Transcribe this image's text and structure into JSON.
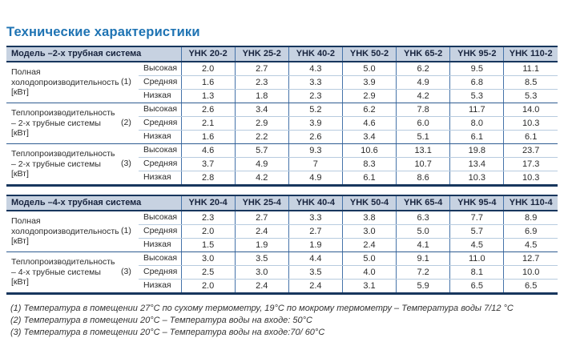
{
  "page": {
    "title": "Технические характеристики"
  },
  "colors": {
    "title_blue": "#1e73b3",
    "header_background": "#c7d2e1",
    "header_text": "#17233d",
    "heavy_border": "#17365d",
    "column_border": "#4573a9",
    "light_row_border": "#b7cbdf",
    "group_border": "#2f5c91"
  },
  "tables": [
    {
      "id": "two-pipe",
      "header_label": "Модель –2-х трубная система",
      "columns": [
        "YHK 20-2",
        "YHK 25-2",
        "YHK 40-2",
        "YHK 50-2",
        "YHK 65-2",
        "YHK 95-2",
        "YHK 110-2"
      ],
      "groups": [
        {
          "label": "Полная холодопроизводительность [кВт]",
          "note_ref": "(1)",
          "rows": [
            {
              "level": "Высокая",
              "values": [
                "2.0",
                "2.7",
                "4.3",
                "5.0",
                "6.2",
                "9.5",
                "11.1"
              ]
            },
            {
              "level": "Средняя",
              "values": [
                "1.6",
                "2.3",
                "3.3",
                "3.9",
                "4.9",
                "6.8",
                "8.5"
              ]
            },
            {
              "level": "Низкая",
              "values": [
                "1.3",
                "1.8",
                "2.3",
                "2.9",
                "4.2",
                "5.3",
                "5.3"
              ]
            }
          ]
        },
        {
          "label": "Теплопроизводительность – 2-х трубные системы [кВт]",
          "note_ref": "(2)",
          "rows": [
            {
              "level": "Высокая",
              "values": [
                "2.6",
                "3.4",
                "5.2",
                "6.2",
                "7.8",
                "11.7",
                "14.0"
              ]
            },
            {
              "level": "Средняя",
              "values": [
                "2.1",
                "2.9",
                "3.9",
                "4.6",
                "6.0",
                "8.0",
                "10.3"
              ]
            },
            {
              "level": "Низкая",
              "values": [
                "1.6",
                "2.2",
                "2.6",
                "3.4",
                "5.1",
                "6.1",
                "6.1"
              ]
            }
          ]
        },
        {
          "label": "Теплопроизводительность – 2-х трубные системы [кВт]",
          "note_ref": "(3)",
          "rows": [
            {
              "level": "Высокая",
              "values": [
                "4.6",
                "5.7",
                "9.3",
                "10.6",
                "13.1",
                "19.8",
                "23.7"
              ]
            },
            {
              "level": "Средняя",
              "values": [
                "3.7",
                "4.9",
                "7",
                "8.3",
                "10.7",
                "13.4",
                "17.3"
              ]
            },
            {
              "level": "Низкая",
              "values": [
                "2.8",
                "4.2",
                "4.9",
                "6.1",
                "8.6",
                "10.3",
                "10.3"
              ]
            }
          ]
        }
      ]
    },
    {
      "id": "four-pipe",
      "header_label": "Модель –4-х трубная система",
      "columns": [
        "YHK 20-4",
        "YHK 25-4",
        "YHK 40-4",
        "YHK 50-4",
        "YHK 65-4",
        "YHK 95-4",
        "YHK 110-4"
      ],
      "groups": [
        {
          "label": "Полная холодопроизводительность [кВт]",
          "note_ref": "(1)",
          "rows": [
            {
              "level": "Высокая",
              "values": [
                "2.3",
                "2.7",
                "3.3",
                "3.8",
                "6.3",
                "7.7",
                "8.9"
              ]
            },
            {
              "level": "Средняя",
              "values": [
                "2.0",
                "2.4",
                "2.7",
                "3.0",
                "5.0",
                "5.7",
                "6.9"
              ]
            },
            {
              "level": "Низкая",
              "values": [
                "1.5",
                "1.9",
                "1.9",
                "2.4",
                "4.1",
                "4.5",
                "4.5"
              ]
            }
          ]
        },
        {
          "label": "Теплопроизводительность – 4-х трубные системы [кВт]",
          "note_ref": "(3)",
          "rows": [
            {
              "level": "Высокая",
              "values": [
                "3.0",
                "3.5",
                "4.4",
                "5.0",
                "9.1",
                "11.0",
                "12.7"
              ]
            },
            {
              "level": "Средняя",
              "values": [
                "2.5",
                "3.0",
                "3.5",
                "4.0",
                "7.2",
                "8.1",
                "10.0"
              ]
            },
            {
              "level": "Низкая",
              "values": [
                "2.0",
                "2.4",
                "2.4",
                "3.1",
                "5.9",
                "6.5",
                "6.5"
              ]
            }
          ]
        }
      ]
    }
  ],
  "footnotes": [
    "(1) Температура в помещении 27°С по сухому термометру, 19°С по мокрому термометру – Температура воды 7/12 °С",
    "(2) Температура в помещении 20°С – Температура воды на входе: 50°С",
    "(3) Температура в помещении 20°С – Температура воды на входе:70/ 60°С"
  ]
}
